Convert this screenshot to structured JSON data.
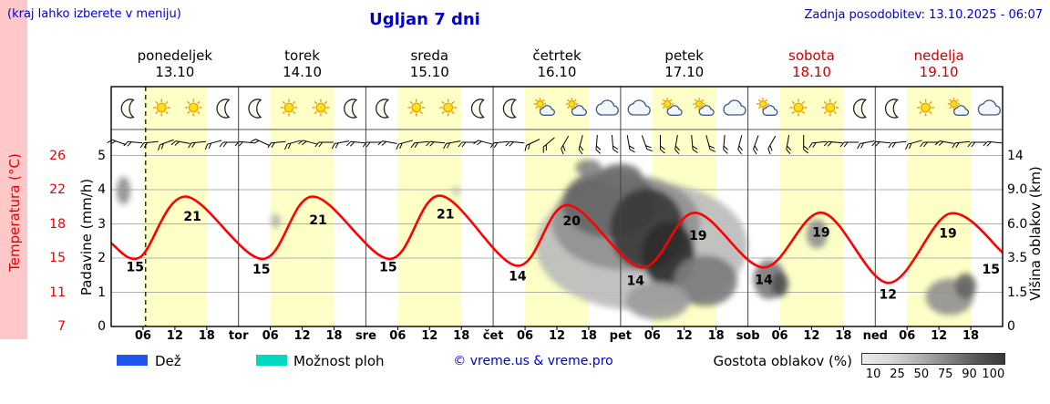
{
  "header": {
    "hint": "(kraj lahko izberete v meniju)",
    "title": "Ugljan 7 dni",
    "last_update": "Zadnja posodobitev: 13.10.2025 - 06:07"
  },
  "colors": {
    "link_blue": "#0000cc",
    "weekend_red": "#cc0000",
    "temp_axis_red": "#e80000",
    "curve_red": "#ff0000",
    "day_band_yellow": "#fdffc6",
    "temp_strip_pink": "#ffc8c8",
    "rain_blue": "#2255ee",
    "showers_cyan": "#00d8c0"
  },
  "days": [
    {
      "name": "ponedeljek",
      "date": "13.10",
      "weekend": false,
      "icons": [
        "moon",
        "sun",
        "sun",
        "moon"
      ]
    },
    {
      "name": "torek",
      "date": "14.10",
      "weekend": false,
      "icons": [
        "moon",
        "sun",
        "sun",
        "moon"
      ]
    },
    {
      "name": "sreda",
      "date": "15.10",
      "weekend": false,
      "icons": [
        "moon",
        "sun",
        "sun",
        "moon"
      ]
    },
    {
      "name": "četrtek",
      "date": "16.10",
      "weekend": false,
      "icons": [
        "moon",
        "sun-cloud",
        "sun-cloud",
        "cloud"
      ]
    },
    {
      "name": "petek",
      "date": "17.10",
      "weekend": false,
      "icons": [
        "cloud",
        "sun-cloud",
        "sun-cloud",
        "cloud"
      ]
    },
    {
      "name": "sobota",
      "date": "18.10",
      "weekend": true,
      "icons": [
        "sun-cloud",
        "sun",
        "sun",
        "moon"
      ]
    },
    {
      "name": "nedelja",
      "date": "19.10",
      "weekend": true,
      "icons": [
        "moon",
        "sun",
        "sun-cloud",
        "cloud"
      ]
    }
  ],
  "axes": {
    "temperature": {
      "label": "Temperatura (°C)",
      "values": [
        26,
        22,
        18,
        15,
        11,
        7
      ]
    },
    "precipitation": {
      "label": "Padavine (mm/h)",
      "values": [
        5,
        4,
        3,
        2,
        1,
        0
      ]
    },
    "cloud_height": {
      "label": "Višina oblakov (km)",
      "values": [
        "14",
        "9.0",
        "6.0",
        "3.5",
        "1.5",
        "0"
      ]
    }
  },
  "x_axis": {
    "hour_labels": [
      "06",
      "12",
      "18"
    ],
    "day_short_labels": [
      "tor",
      "sre",
      "čet",
      "pet",
      "sob",
      "ned"
    ]
  },
  "legend": {
    "rain_label": "Dež",
    "showers_label": "Možnost ploh",
    "copyright": "© vreme.us & vreme.pro",
    "cloud_density_label": "Gostota oblakov (%)",
    "cloud_density_values": [
      "10",
      "25",
      "50",
      "75",
      "90",
      "100"
    ],
    "cloud_density_grays": [
      "#ededed",
      "#d7d7d7",
      "#b2b2b2",
      "#868686",
      "#585858",
      "#383838"
    ]
  },
  "chart_data": {
    "type": "line",
    "title": "Ugljan 7 dni",
    "x_axis_hours_from": "2025-10-13 00:00",
    "now_hour": 6.5,
    "temperature_series": {
      "name": "Temperatura (°C)",
      "points": [
        [
          0,
          16.3
        ],
        [
          5.5,
          15.1
        ],
        [
          14,
          21.2
        ],
        [
          28.5,
          14.9
        ],
        [
          38,
          21.2
        ],
        [
          52.5,
          14.9
        ],
        [
          62,
          21.3
        ],
        [
          76.5,
          14.1
        ],
        [
          86,
          20.2
        ],
        [
          100,
          13.9
        ],
        [
          110,
          19.3
        ],
        [
          123,
          13.9
        ],
        [
          134,
          19.3
        ],
        [
          146.5,
          12.1
        ],
        [
          158,
          19.2
        ],
        [
          168,
          15.5
        ]
      ]
    },
    "curve_labels": [
      {
        "t": 4.5,
        "T": 14.0,
        "text": "15"
      },
      {
        "t": 15.3,
        "T": 18.9,
        "text": "21"
      },
      {
        "t": 28.3,
        "T": 13.7,
        "text": "15"
      },
      {
        "t": 39,
        "T": 18.5,
        "text": "21"
      },
      {
        "t": 52.2,
        "T": 14.0,
        "text": "15"
      },
      {
        "t": 63,
        "T": 19.2,
        "text": "21"
      },
      {
        "t": 76.6,
        "T": 12.9,
        "text": "14"
      },
      {
        "t": 86.8,
        "T": 18.4,
        "text": "20"
      },
      {
        "t": 98.8,
        "T": 12.4,
        "text": "14"
      },
      {
        "t": 110.6,
        "T": 17.0,
        "text": "19"
      },
      {
        "t": 123,
        "T": 12.5,
        "text": "14"
      },
      {
        "t": 133.8,
        "T": 17.3,
        "text": "19"
      },
      {
        "t": 146.4,
        "T": 10.8,
        "text": "12"
      },
      {
        "t": 157.7,
        "T": 17.2,
        "text": "19"
      },
      {
        "t": 165.8,
        "T": 13.7,
        "text": "15"
      }
    ],
    "cloud_blobs": [
      {
        "t": 2.3,
        "h": 9.3,
        "rt": 1.3,
        "rh": 1.6,
        "density": 45
      },
      {
        "t": 31,
        "h": 6.3,
        "rt": 0.9,
        "rh": 0.6,
        "density": 30
      },
      {
        "t": 65,
        "h": 9.0,
        "rt": 0.7,
        "rh": 0.5,
        "density": 25
      },
      {
        "t": 100,
        "h": 5.5,
        "rt": 20,
        "rh": 4.8,
        "density": 25
      },
      {
        "t": 97,
        "h": 7,
        "rt": 14,
        "rh": 4.2,
        "density": 45
      },
      {
        "t": 94,
        "h": 8.5,
        "rt": 9,
        "rh": 3.5,
        "density": 65
      },
      {
        "t": 101,
        "h": 6,
        "rt": 7,
        "rh": 3.2,
        "density": 85
      },
      {
        "t": 105,
        "h": 4,
        "rt": 5,
        "rh": 2.2,
        "density": 92
      },
      {
        "t": 96,
        "h": 11,
        "rt": 4,
        "rh": 1.8,
        "density": 60
      },
      {
        "t": 90,
        "h": 12.2,
        "rt": 2.5,
        "rh": 1.2,
        "density": 50
      },
      {
        "t": 112,
        "h": 2.3,
        "rt": 6,
        "rh": 1.4,
        "density": 55
      },
      {
        "t": 103,
        "h": 1.2,
        "rt": 6,
        "rh": 0.9,
        "density": 40
      },
      {
        "t": 124,
        "h": 2.3,
        "rt": 3,
        "rh": 1.1,
        "density": 55
      },
      {
        "t": 126,
        "h": 2,
        "rt": 1.6,
        "rh": 0.7,
        "density": 75
      },
      {
        "t": 133,
        "h": 5.3,
        "rt": 2,
        "rh": 1.1,
        "density": 45
      },
      {
        "t": 158,
        "h": 1.4,
        "rt": 4.5,
        "rh": 0.9,
        "density": 45
      },
      {
        "t": 161,
        "h": 1.9,
        "rt": 2,
        "rh": 0.7,
        "density": 65
      }
    ],
    "wind_barb_angles": [
      200,
      185,
      175,
      160,
      190,
      175,
      165,
      180,
      185,
      205,
      175,
      165,
      195,
      180,
      170,
      185,
      180,
      190,
      165,
      175,
      185,
      170,
      180,
      195,
      175,
      185,
      155,
      140,
      120,
      105,
      95,
      85,
      80,
      70,
      90,
      100,
      85,
      75,
      95,
      105,
      110,
      120,
      100,
      90,
      175,
      185,
      180,
      170,
      185,
      175,
      165,
      180,
      190,
      175,
      180,
      185
    ]
  }
}
